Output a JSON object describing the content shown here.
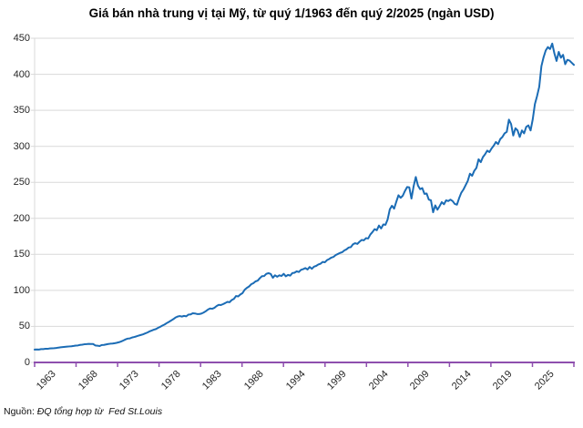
{
  "title": "Giá bán nhà trung vị tại Mỹ, từ quý 1/1963 đến quý 2/2025 (ngàn USD)",
  "source": {
    "label": "Nguồn: ",
    "text": "ĐQ tổng hợp từ  Fed St.Louis"
  },
  "colors": {
    "line": "#1b6cb5",
    "axis_x": "#8e4fae",
    "grid": "#d9d9d9",
    "axis_y": "#d9d9d9",
    "tick_text": "#262626",
    "title_text": "#000000",
    "background": "#ffffff"
  },
  "chart_data": {
    "type": "line",
    "title": "Giá bán nhà trung vị tại Mỹ, từ quý 1/1963 đến quý 2/2025 (ngàn USD)",
    "xlabel": "",
    "ylabel": "",
    "unit": "ngàn USD",
    "frequency": "quarterly",
    "x_start": "1963-Q1",
    "x_end": "2025-Q2",
    "ylim": [
      0,
      450
    ],
    "y_ticks": [
      0,
      50,
      100,
      150,
      200,
      250,
      300,
      350,
      400,
      450
    ],
    "x_tick_labels": [
      "1963",
      "1968",
      "1973",
      "1978",
      "1983",
      "1988",
      "1994",
      "1999",
      "2004",
      "2009",
      "2014",
      "2019",
      "2025"
    ],
    "grid": "horizontal",
    "legend": "none",
    "series": [
      {
        "name": "Giá bán nhà trung vị (ngàn USD)",
        "color": "#1b6cb5",
        "values": [
          17.8,
          18.0,
          17.9,
          18.5,
          18.5,
          18.9,
          18.9,
          19.4,
          19.6,
          19.8,
          20.1,
          20.6,
          21.0,
          21.3,
          21.6,
          21.9,
          22.2,
          22.5,
          22.9,
          23.4,
          23.6,
          24.3,
          24.7,
          25.2,
          25.4,
          25.7,
          25.6,
          25.6,
          23.6,
          23.3,
          22.7,
          24.2,
          24.3,
          25.0,
          25.6,
          26.0,
          26.2,
          26.7,
          27.3,
          28.1,
          29.2,
          30.5,
          32.0,
          33.1,
          33.4,
          34.6,
          35.3,
          36.2,
          37.2,
          38.1,
          39.0,
          40.2,
          41.4,
          43.0,
          44.2,
          45.4,
          46.3,
          48.0,
          49.5,
          51.2,
          52.6,
          54.6,
          56.3,
          58.1,
          60.0,
          62.2,
          63.7,
          64.4,
          63.7,
          64.6,
          64.0,
          66.4,
          66.6,
          68.2,
          68.0,
          67.2,
          67.2,
          67.8,
          69.2,
          71.0,
          73.3,
          74.9,
          74.5,
          75.8,
          78.2,
          79.9,
          79.7,
          80.9,
          82.4,
          84.1,
          83.6,
          86.6,
          88.2,
          92.2,
          91.6,
          94.3,
          96.2,
          101.0,
          103.5,
          105.4,
          108.5,
          110.0,
          112.5,
          113.5,
          117.0,
          119.8,
          120.0,
          123.0,
          123.9,
          122.9,
          117.5,
          121.0,
          119.0,
          121.0,
          120.0,
          123.0,
          119.5,
          121.5,
          120.5,
          124.0,
          124.5,
          126.5,
          125.5,
          128.5,
          129.5,
          131.0,
          129.0,
          132.5,
          130.0,
          133.0,
          134.0,
          136.0,
          137.0,
          139.5,
          139.0,
          142.0,
          143.5,
          145.5,
          146.5,
          149.0,
          150.5,
          152.0,
          153.0,
          155.5,
          157.0,
          159.5,
          160.0,
          164.0,
          165.5,
          164.5,
          167.5,
          170.0,
          169.5,
          172.5,
          172.0,
          177.5,
          181.0,
          185.0,
          183.5,
          190.0,
          186.0,
          191.5,
          191.0,
          198.5,
          212.5,
          217.5,
          213.5,
          223.0,
          232.0,
          228.5,
          231.5,
          238.0,
          243.5,
          243.0,
          227.5,
          244.5,
          257.4,
          245.5,
          240.5,
          242.0,
          234.0,
          234.5,
          226.0,
          225.0,
          208.4,
          218.0,
          212.0,
          217.0,
          222.5,
          219.5,
          225.0,
          224.0,
          226.0,
          224.0,
          220.0,
          219.0,
          228.0,
          235.5,
          240.0,
          246.0,
          252.0,
          262.0,
          259.0,
          266.0,
          270.0,
          282.0,
          278.0,
          285.0,
          289.0,
          294.0,
          292.0,
          297.0,
          301.0,
          306.0,
          303.0,
          310.0,
          313.0,
          318.0,
          320.0,
          337.0,
          331.0,
          315.0,
          325.0,
          322.0,
          313.0,
          322.0,
          318.0,
          327.0,
          329.0,
          322.0,
          337.5,
          358.7,
          369.8,
          382.6,
          411.2,
          423.6,
          433.1,
          437.7,
          435.0,
          442.6,
          429.0,
          418.5,
          431.0,
          423.0,
          427.0,
          414.0,
          420.0,
          419.0,
          416.0,
          413.0
        ]
      }
    ]
  }
}
